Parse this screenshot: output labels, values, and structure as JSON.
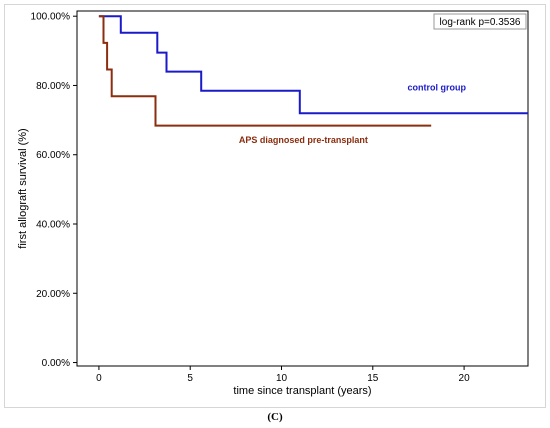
{
  "chart_data": {
    "type": "line",
    "step": true,
    "xlabel": "time since transplant (years)",
    "ylabel": "first allograft survival (%)",
    "xlim": [
      -1.2,
      23.5
    ],
    "ylim": [
      -1.0,
      101.5
    ],
    "x_ticks": [
      0,
      5,
      10,
      15,
      20
    ],
    "y_ticks": [
      {
        "value": 0,
        "label": "0.00%"
      },
      {
        "value": 20,
        "label": "20.00%"
      },
      {
        "value": 40,
        "label": "40.00%"
      },
      {
        "value": 60,
        "label": "60.00%"
      },
      {
        "value": 80,
        "label": "80.00%"
      },
      {
        "value": 100,
        "label": "100.00%"
      }
    ],
    "grid": false,
    "annotation": "log-rank p=0.3536",
    "series": [
      {
        "name": "control group",
        "color": "#1a1ac8",
        "points": [
          {
            "x": 0.0,
            "y": 100.0
          },
          {
            "x": 1.2,
            "y": 95.2
          },
          {
            "x": 3.2,
            "y": 89.5
          },
          {
            "x": 3.7,
            "y": 84.0
          },
          {
            "x": 5.6,
            "y": 78.5
          },
          {
            "x": 11.0,
            "y": 72.0
          },
          {
            "x": 23.5,
            "y": 72.0
          }
        ]
      },
      {
        "name": "APS diagnosed pre-transplant",
        "color": "#8b2d0f",
        "points": [
          {
            "x": 0.0,
            "y": 100.0
          },
          {
            "x": 0.25,
            "y": 92.3
          },
          {
            "x": 0.45,
            "y": 84.6
          },
          {
            "x": 0.7,
            "y": 76.9
          },
          {
            "x": 3.1,
            "y": 68.4
          },
          {
            "x": 18.2,
            "y": 68.4
          }
        ]
      }
    ]
  },
  "caption": "(C)"
}
